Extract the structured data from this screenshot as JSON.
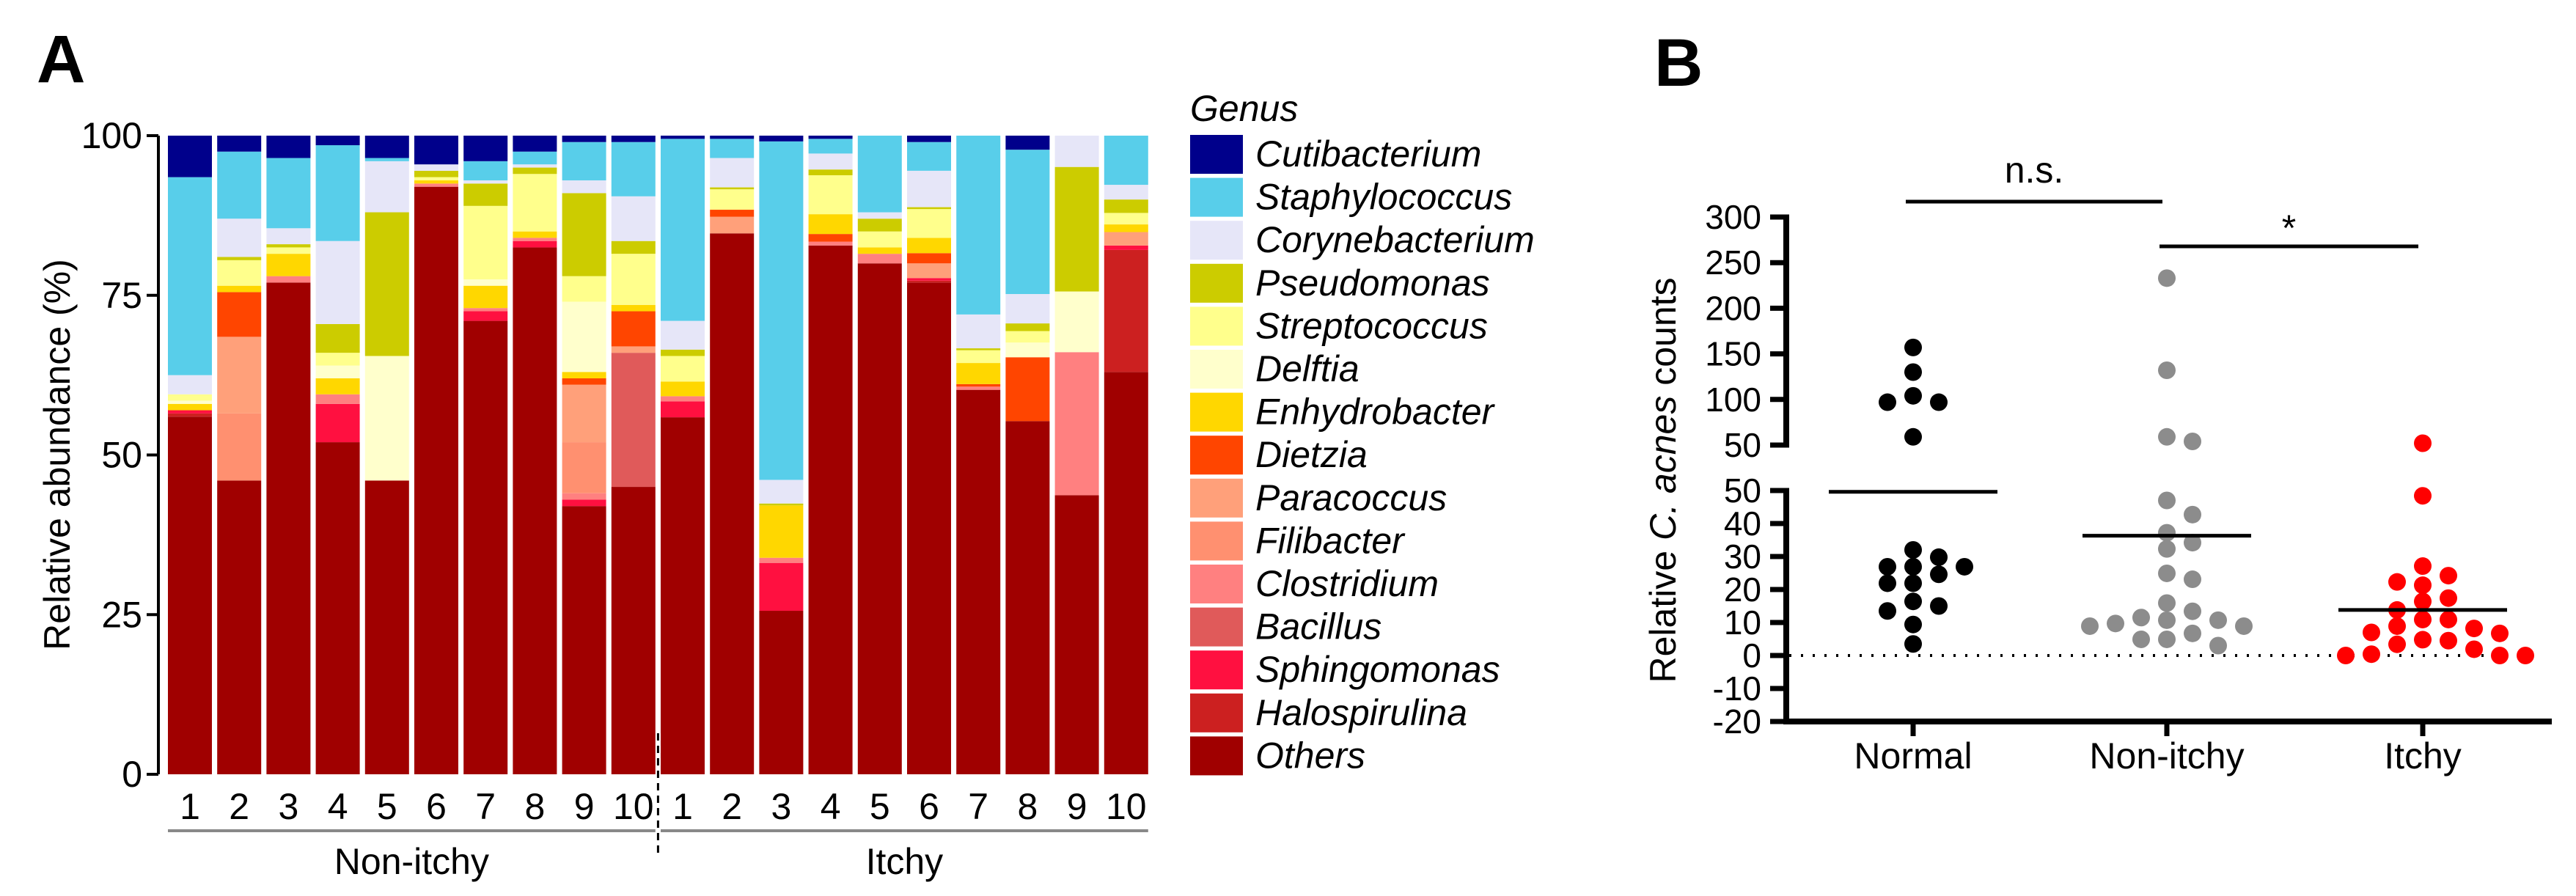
{
  "panels": {
    "a_label": "A",
    "b_label": "B"
  },
  "chart_data": [
    {
      "type": "bar",
      "stacked": true,
      "panel": "A",
      "ylabel": "Relative abundance (%)",
      "ylim": [
        0,
        100
      ],
      "yticks": [
        "0",
        "25",
        "50",
        "75",
        "100"
      ],
      "categories": [
        "1",
        "2",
        "3",
        "4",
        "5",
        "6",
        "7",
        "8",
        "9",
        "10",
        "1",
        "2",
        "3",
        "4",
        "5",
        "6",
        "7",
        "8",
        "9",
        "10"
      ],
      "groups": [
        {
          "name": "Non-itchy",
          "count": 10
        },
        {
          "name": "Itchy",
          "count": 10
        }
      ],
      "legend_title": "Genus",
      "legend_position": "right",
      "genera": [
        "Cutibacterium",
        "Staphylococcus",
        "Corynebacterium",
        "Pseudomonas",
        "Streptococcus",
        "Delftia",
        "Enhydrobacter",
        "Dietzia",
        "Paracoccus",
        "Filibacter",
        "Clostridium",
        "Bacillus",
        "Sphingomonas",
        "Halospirulina",
        "Others"
      ],
      "colors": [
        "#00008B",
        "#58CEEA",
        "#E6E6F8",
        "#CCCC00",
        "#FFFF8C",
        "#FFFFCC",
        "#FFD700",
        "#FF4500",
        "#FFA07A",
        "#FF9070",
        "#FF8080",
        "#E05A5A",
        "#FF1040",
        "#CC2020",
        "#A00000"
      ],
      "samples": [
        [
          6.5,
          31,
          3,
          0,
          1,
          0.5,
          1,
          0,
          0,
          0,
          0,
          0,
          0.5,
          0.5,
          56
        ],
        [
          2.5,
          10.5,
          6,
          0.5,
          4,
          0,
          1,
          7,
          12,
          10.5,
          0,
          0,
          0,
          0,
          46
        ],
        [
          3.5,
          11,
          2.5,
          0.5,
          1,
          0,
          3.5,
          0,
          0,
          0,
          1,
          0,
          0,
          0,
          77
        ],
        [
          1.5,
          15,
          13,
          4.5,
          2,
          2,
          2.5,
          0,
          0,
          0,
          1.5,
          0,
          6,
          0,
          52
        ],
        [
          3.5,
          0.5,
          8,
          22.5,
          0,
          19.5,
          0,
          0,
          0,
          0,
          0,
          0,
          0,
          0,
          46
        ],
        [
          4.5,
          0,
          1,
          1,
          0.5,
          0,
          0.5,
          0,
          0,
          0,
          0.5,
          0,
          0,
          0,
          92
        ],
        [
          4,
          3,
          0.5,
          3.5,
          11.5,
          1,
          3.5,
          0,
          0,
          0,
          0.5,
          0,
          1.5,
          0,
          71
        ],
        [
          2.5,
          2,
          0.5,
          1,
          9,
          0,
          1,
          0,
          0,
          0,
          0.5,
          0,
          1,
          0,
          82.5
        ],
        [
          1,
          6,
          2,
          13,
          4,
          11,
          1,
          1,
          9,
          8,
          1,
          0,
          1,
          0,
          42
        ],
        [
          1,
          8.5,
          7,
          2,
          8,
          0,
          1,
          5.5,
          1,
          0,
          0,
          21,
          0,
          0,
          45
        ],
        [
          0.5,
          28.5,
          4.5,
          1,
          4,
          0,
          2.3,
          0,
          0,
          0,
          0.8,
          0,
          2.5,
          0,
          55.9
        ],
        [
          0.5,
          3,
          4.6,
          0.3,
          3.2,
          0,
          0,
          1.1,
          2.6,
          0,
          0,
          0,
          0,
          0,
          84.7
        ],
        [
          0.9,
          53,
          3.7,
          0.3,
          0,
          0,
          8.2,
          0,
          0,
          0,
          0.8,
          0,
          7.5,
          0,
          25.6
        ],
        [
          0.5,
          2.3,
          2.5,
          0.9,
          6.1,
          0,
          3.1,
          1.2,
          0,
          0,
          0.6,
          0,
          0,
          0,
          82.8
        ],
        [
          0,
          12,
          1,
          2,
          2.5,
          0,
          1,
          0,
          0,
          0,
          1.5,
          0,
          0,
          0,
          80
        ],
        [
          1,
          4.5,
          5.7,
          0.3,
          4.5,
          0,
          2.4,
          1.6,
          2.3,
          0,
          0,
          0,
          0.4,
          0.3,
          77
        ],
        [
          0,
          28,
          5.3,
          0.3,
          2,
          0,
          3.3,
          0.4,
          0,
          0,
          0.5,
          0,
          0,
          0,
          60.2
        ],
        [
          2.2,
          22.6,
          4.6,
          1.2,
          1.8,
          2.3,
          0,
          10,
          0,
          0,
          0,
          0,
          0,
          0,
          55.3
        ],
        [
          0,
          0,
          4.9,
          19.5,
          0,
          9.5,
          0,
          0,
          0,
          0,
          22.4,
          0,
          0,
          0,
          43.7
        ],
        [
          0,
          7.7,
          2.3,
          2.1,
          1.8,
          0,
          1.2,
          0,
          2.1,
          0,
          0,
          0,
          0.7,
          19.1,
          63
        ]
      ]
    },
    {
      "type": "scatter",
      "panel": "B",
      "ylabel_prefix": "Relative ",
      "ylabel_italic": "C. acnes",
      "ylabel_suffix": " counts",
      "broken_axis": {
        "lower": [
          -20,
          50
        ],
        "upper": [
          50,
          300
        ]
      },
      "yticks_upper": [
        "300",
        "250",
        "200",
        "150",
        "100",
        "50"
      ],
      "yticks_lower": [
        "50",
        "40",
        "30",
        "20",
        "10",
        "0",
        "-10",
        "-20"
      ],
      "reference_line": 0,
      "categories": [
        "Normal",
        "Non-itchy",
        "Itchy"
      ],
      "colors": [
        "#000000",
        "#8C8C8C",
        "#FF0000"
      ],
      "points": [
        [
          157,
          130,
          104,
          97,
          97,
          59,
          32,
          29.8,
          26.9,
          26.9,
          26.9,
          24.6,
          21.9,
          21.9,
          16.4,
          15,
          13.5,
          9.4,
          3.5
        ],
        [
          233,
          132,
          59,
          54,
          47,
          42.7,
          37.2,
          34.2,
          32.3,
          24.9,
          23.1,
          15.9,
          13.4,
          11.5,
          10.7,
          10.7,
          9.7,
          8.9,
          8.9,
          6.7,
          4.9,
          4.9,
          3
        ],
        [
          52,
          48.4,
          27.1,
          24.2,
          22.3,
          21.3,
          17.4,
          16.4,
          13.8,
          10.9,
          10.9,
          8.9,
          8.2,
          7,
          6.7,
          4.8,
          4.5,
          3.4,
          1.9,
          0.4,
          0,
          0,
          0
        ]
      ],
      "means": [
        49.6,
        36.3,
        13.8
      ],
      "comparisons": [
        {
          "from": "Normal",
          "to": "Non-itchy",
          "label": "n.s."
        },
        {
          "from": "Non-itchy",
          "to": "Itchy",
          "label": "*"
        }
      ]
    }
  ]
}
